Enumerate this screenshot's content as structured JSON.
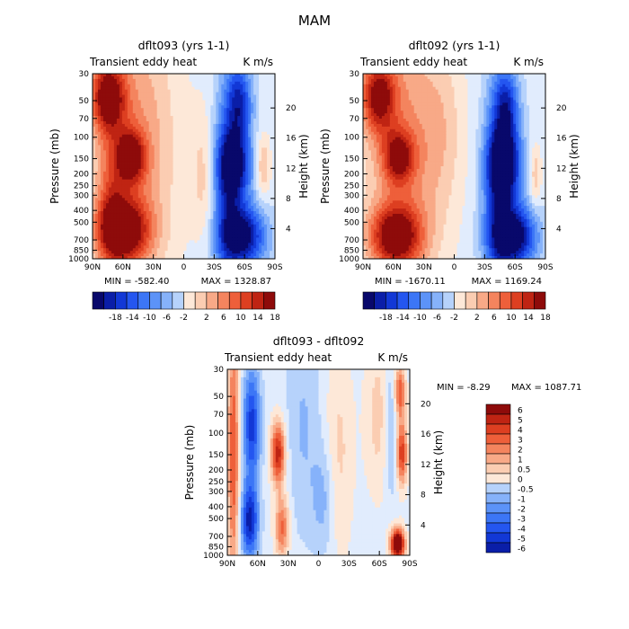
{
  "page_title": "MAM",
  "colors": {
    "cold": [
      "#08086b",
      "#0a1ea8",
      "#1238d6",
      "#2456f0",
      "#3c76f6",
      "#5c93f8",
      "#86b2fa",
      "#b6d2fb",
      "#e1ecfd"
    ],
    "warm": [
      "#fde8d8",
      "#fbcdb2",
      "#f8a987",
      "#f4845e",
      "#ee5f3a",
      "#dd3f21",
      "#bf2413",
      "#8e0b0a"
    ]
  },
  "chart_data": [
    {
      "type": "heatmap",
      "title": "dflt093 (yrs 1-1)",
      "subtitle_left": "Transient eddy heat",
      "subtitle_right": "K m/s",
      "ylabel": "Pressure (mb)",
      "ylabel_right": "Height (km)",
      "x_ticks": [
        "90N",
        "60N",
        "30N",
        "0",
        "30S",
        "60S",
        "90S"
      ],
      "y_ticks": [
        "30",
        "50",
        "70",
        "100",
        "150",
        "200",
        "250",
        "300",
        "400",
        "500",
        "700",
        "850",
        "1000"
      ],
      "y_right_ticks": [
        "20",
        "16",
        "12",
        "8",
        "4"
      ],
      "y_scale": "log",
      "min_label": "MIN = -582.40",
      "max_label": "MAX = 1328.87",
      "colorbar_labels": [
        "-18",
        "-14",
        "-10",
        "-6",
        "-2",
        "2",
        "6",
        "10",
        "14",
        "18"
      ],
      "colorbar_orientation": "horizontal",
      "colorbar_levels": 16
    },
    {
      "type": "heatmap",
      "title": "dflt092 (yrs 1-1)",
      "subtitle_left": "Transient eddy heat",
      "subtitle_right": "K m/s",
      "ylabel": "Pressure (mb)",
      "ylabel_right": "Height (km)",
      "x_ticks": [
        "90N",
        "60N",
        "30N",
        "0",
        "30S",
        "60S",
        "90S"
      ],
      "y_ticks": [
        "30",
        "50",
        "70",
        "100",
        "150",
        "200",
        "250",
        "300",
        "400",
        "500",
        "700",
        "850",
        "1000"
      ],
      "y_right_ticks": [
        "20",
        "16",
        "12",
        "8",
        "4"
      ],
      "y_scale": "log",
      "min_label": "MIN = -1670.11",
      "max_label": "MAX = 1169.24",
      "colorbar_labels": [
        "-18",
        "-14",
        "-10",
        "-6",
        "-2",
        "2",
        "6",
        "10",
        "14",
        "18"
      ],
      "colorbar_orientation": "horizontal",
      "colorbar_levels": 16
    },
    {
      "type": "heatmap",
      "title": "dflt093 - dflt092",
      "subtitle_left": "Transient eddy heat",
      "subtitle_right": "K m/s",
      "ylabel": "Pressure (mb)",
      "ylabel_right": "Height (km)",
      "x_ticks": [
        "90N",
        "60N",
        "30N",
        "0",
        "30S",
        "60S",
        "90S"
      ],
      "y_ticks": [
        "30",
        "50",
        "70",
        "100",
        "150",
        "200",
        "250",
        "300",
        "400",
        "500",
        "700",
        "850",
        "1000"
      ],
      "y_right_ticks": [
        "20",
        "16",
        "12",
        "8",
        "4"
      ],
      "y_scale": "log",
      "min_label": "MIN = -8.29",
      "max_label": "MAX = 1087.71",
      "colorbar_labels": [
        "6",
        "5",
        "4",
        "3",
        "2",
        "1",
        "0.5",
        "0",
        "-0.5",
        "-1",
        "-2",
        "-3",
        "-4",
        "-5",
        "-6"
      ],
      "colorbar_orientation": "vertical",
      "colorbar_levels": 14
    }
  ]
}
